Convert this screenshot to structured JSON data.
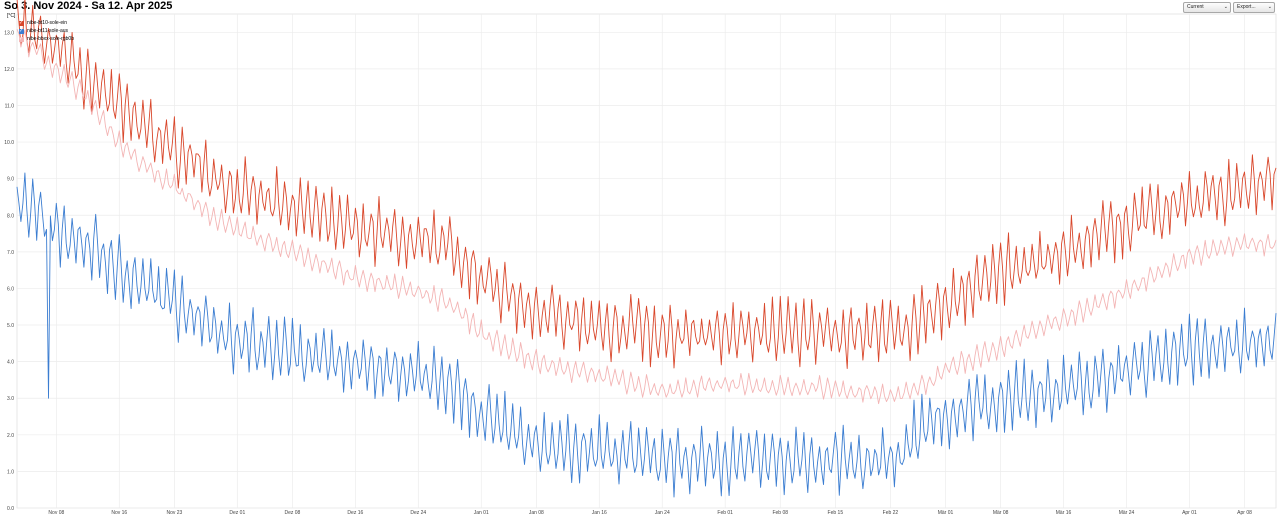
{
  "header": {
    "title": "So 3. Nov 2024 - Sa 12. Apr 2025"
  },
  "controls": {
    "range_select": "Current",
    "export_select": "Export..."
  },
  "chart_data": {
    "type": "line",
    "y_unit": "[°C]",
    "ylim": [
      0,
      13.5
    ],
    "y_ticks": [
      "0.0",
      "1.0",
      "2.0",
      "3.0",
      "4.0",
      "5.0",
      "6.0",
      "7.0",
      "8.0",
      "9.0",
      "10.0",
      "11.0",
      "12.0",
      "13.0"
    ],
    "xlim": [
      "2024-11-03",
      "2025-04-12"
    ],
    "x_ticks": [
      {
        "date": "2024-11-08",
        "label": "Nov 08"
      },
      {
        "date": "2024-11-16",
        "label": "Nov 16"
      },
      {
        "date": "2024-11-23",
        "label": "Nov 23"
      },
      {
        "date": "2024-12-01",
        "label": "Dez 01"
      },
      {
        "date": "2024-12-08",
        "label": "Dez 08"
      },
      {
        "date": "2024-12-16",
        "label": "Dez 16"
      },
      {
        "date": "2024-12-24",
        "label": "Dez 24"
      },
      {
        "date": "2025-01-01",
        "label": "Jan 01"
      },
      {
        "date": "2025-01-08",
        "label": "Jan 08"
      },
      {
        "date": "2025-01-16",
        "label": "Jan 16"
      },
      {
        "date": "2025-01-24",
        "label": "Jan 24"
      },
      {
        "date": "2025-02-01",
        "label": "Feb 01"
      },
      {
        "date": "2025-02-08",
        "label": "Feb 08"
      },
      {
        "date": "2025-02-15",
        "label": "Feb 15"
      },
      {
        "date": "2025-02-22",
        "label": "Feb 22"
      },
      {
        "date": "2025-03-01",
        "label": "Mär 01"
      },
      {
        "date": "2025-03-08",
        "label": "Mär 08"
      },
      {
        "date": "2025-03-16",
        "label": "Mär 16"
      },
      {
        "date": "2025-03-24",
        "label": "Mär 24"
      },
      {
        "date": "2025-04-01",
        "label": "Apr 01"
      },
      {
        "date": "2025-04-08",
        "label": "Apr 08"
      }
    ],
    "grid": true,
    "legend_position": "top-left",
    "series": [
      {
        "name": "nibe-bt10-sole-ein",
        "color": "#d9472b",
        "min_max_per_day": 1,
        "base": [
          [
            "2024-11-03",
            13.0
          ],
          [
            "2024-11-05",
            13.0
          ],
          [
            "2024-11-08",
            12.6
          ],
          [
            "2024-11-12",
            11.8
          ],
          [
            "2024-11-16",
            11.0
          ],
          [
            "2024-11-20",
            10.2
          ],
          [
            "2024-11-23",
            9.8
          ],
          [
            "2024-11-27",
            9.2
          ],
          [
            "2024-12-01",
            8.7
          ],
          [
            "2024-12-08",
            8.2
          ],
          [
            "2024-12-16",
            7.6
          ],
          [
            "2024-12-24",
            7.4
          ],
          [
            "2024-12-28",
            7.1
          ],
          [
            "2025-01-01",
            6.3
          ],
          [
            "2025-01-04",
            5.9
          ],
          [
            "2025-01-08",
            5.4
          ],
          [
            "2025-01-16",
            5.0
          ],
          [
            "2025-01-24",
            4.8
          ],
          [
            "2025-02-01",
            4.8
          ],
          [
            "2025-02-08",
            4.8
          ],
          [
            "2025-02-15",
            4.8
          ],
          [
            "2025-02-22",
            4.7
          ],
          [
            "2025-02-26",
            5.2
          ],
          [
            "2025-03-01",
            5.6
          ],
          [
            "2025-03-08",
            6.5
          ],
          [
            "2025-03-16",
            7.0
          ],
          [
            "2025-03-24",
            7.8
          ],
          [
            "2025-04-01",
            8.4
          ],
          [
            "2025-04-08",
            8.8
          ],
          [
            "2025-04-12",
            8.9
          ]
        ]
      },
      {
        "name": "nibe-bt11-sole-aus",
        "color": "#3b7dd1",
        "min_max_per_day": 1,
        "base": [
          [
            "2024-11-03",
            8.4
          ],
          [
            "2024-11-05",
            8.1
          ],
          [
            "2024-11-08",
            7.6
          ],
          [
            "2024-11-12",
            7.2
          ],
          [
            "2024-11-16",
            6.6
          ],
          [
            "2024-11-20",
            6.0
          ],
          [
            "2024-11-23",
            5.6
          ],
          [
            "2024-11-27",
            5.0
          ],
          [
            "2024-12-01",
            4.6
          ],
          [
            "2024-12-08",
            4.2
          ],
          [
            "2024-12-16",
            3.9
          ],
          [
            "2024-12-24",
            3.7
          ],
          [
            "2024-12-28",
            3.3
          ],
          [
            "2025-01-01",
            2.6
          ],
          [
            "2025-01-04",
            2.3
          ],
          [
            "2025-01-08",
            1.8
          ],
          [
            "2025-01-16",
            1.6
          ],
          [
            "2025-01-24",
            1.3
          ],
          [
            "2025-02-01",
            1.3
          ],
          [
            "2025-02-08",
            1.3
          ],
          [
            "2025-02-15",
            1.3
          ],
          [
            "2025-02-22",
            1.2
          ],
          [
            "2025-02-26",
            2.2
          ],
          [
            "2025-03-01",
            2.5
          ],
          [
            "2025-03-08",
            3.0
          ],
          [
            "2025-03-16",
            3.2
          ],
          [
            "2025-03-24",
            3.8
          ],
          [
            "2025-04-01",
            4.3
          ],
          [
            "2025-04-08",
            4.5
          ],
          [
            "2025-04-12",
            4.6
          ]
        ],
        "outliers": [
          [
            "2024-11-07",
            3.0
          ]
        ]
      },
      {
        "name": "nibe-bbxx-sole-rgb0b",
        "color": "#f3b5b5",
        "min_max_per_day": 0.35,
        "base": [
          [
            "2024-11-03",
            12.9
          ],
          [
            "2024-11-05",
            12.6
          ],
          [
            "2024-11-08",
            12.0
          ],
          [
            "2024-11-12",
            11.2
          ],
          [
            "2024-11-16",
            10.0
          ],
          [
            "2024-11-20",
            9.2
          ],
          [
            "2024-11-23",
            8.8
          ],
          [
            "2024-11-27",
            8.1
          ],
          [
            "2024-12-01",
            7.6
          ],
          [
            "2024-12-08",
            7.0
          ],
          [
            "2024-12-16",
            6.3
          ],
          [
            "2024-12-24",
            5.9
          ],
          [
            "2024-12-28",
            5.6
          ],
          [
            "2025-01-01",
            4.8
          ],
          [
            "2025-01-04",
            4.4
          ],
          [
            "2025-01-08",
            4.0
          ],
          [
            "2025-01-16",
            3.6
          ],
          [
            "2025-01-24",
            3.2
          ],
          [
            "2025-02-01",
            3.4
          ],
          [
            "2025-02-08",
            3.3
          ],
          [
            "2025-02-15",
            3.3
          ],
          [
            "2025-02-22",
            3.0
          ],
          [
            "2025-02-26",
            3.3
          ],
          [
            "2025-03-01",
            3.8
          ],
          [
            "2025-03-08",
            4.4
          ],
          [
            "2025-03-16",
            5.2
          ],
          [
            "2025-03-24",
            5.9
          ],
          [
            "2025-04-01",
            6.9
          ],
          [
            "2025-04-08",
            7.2
          ],
          [
            "2025-04-12",
            7.2
          ]
        ]
      }
    ]
  }
}
